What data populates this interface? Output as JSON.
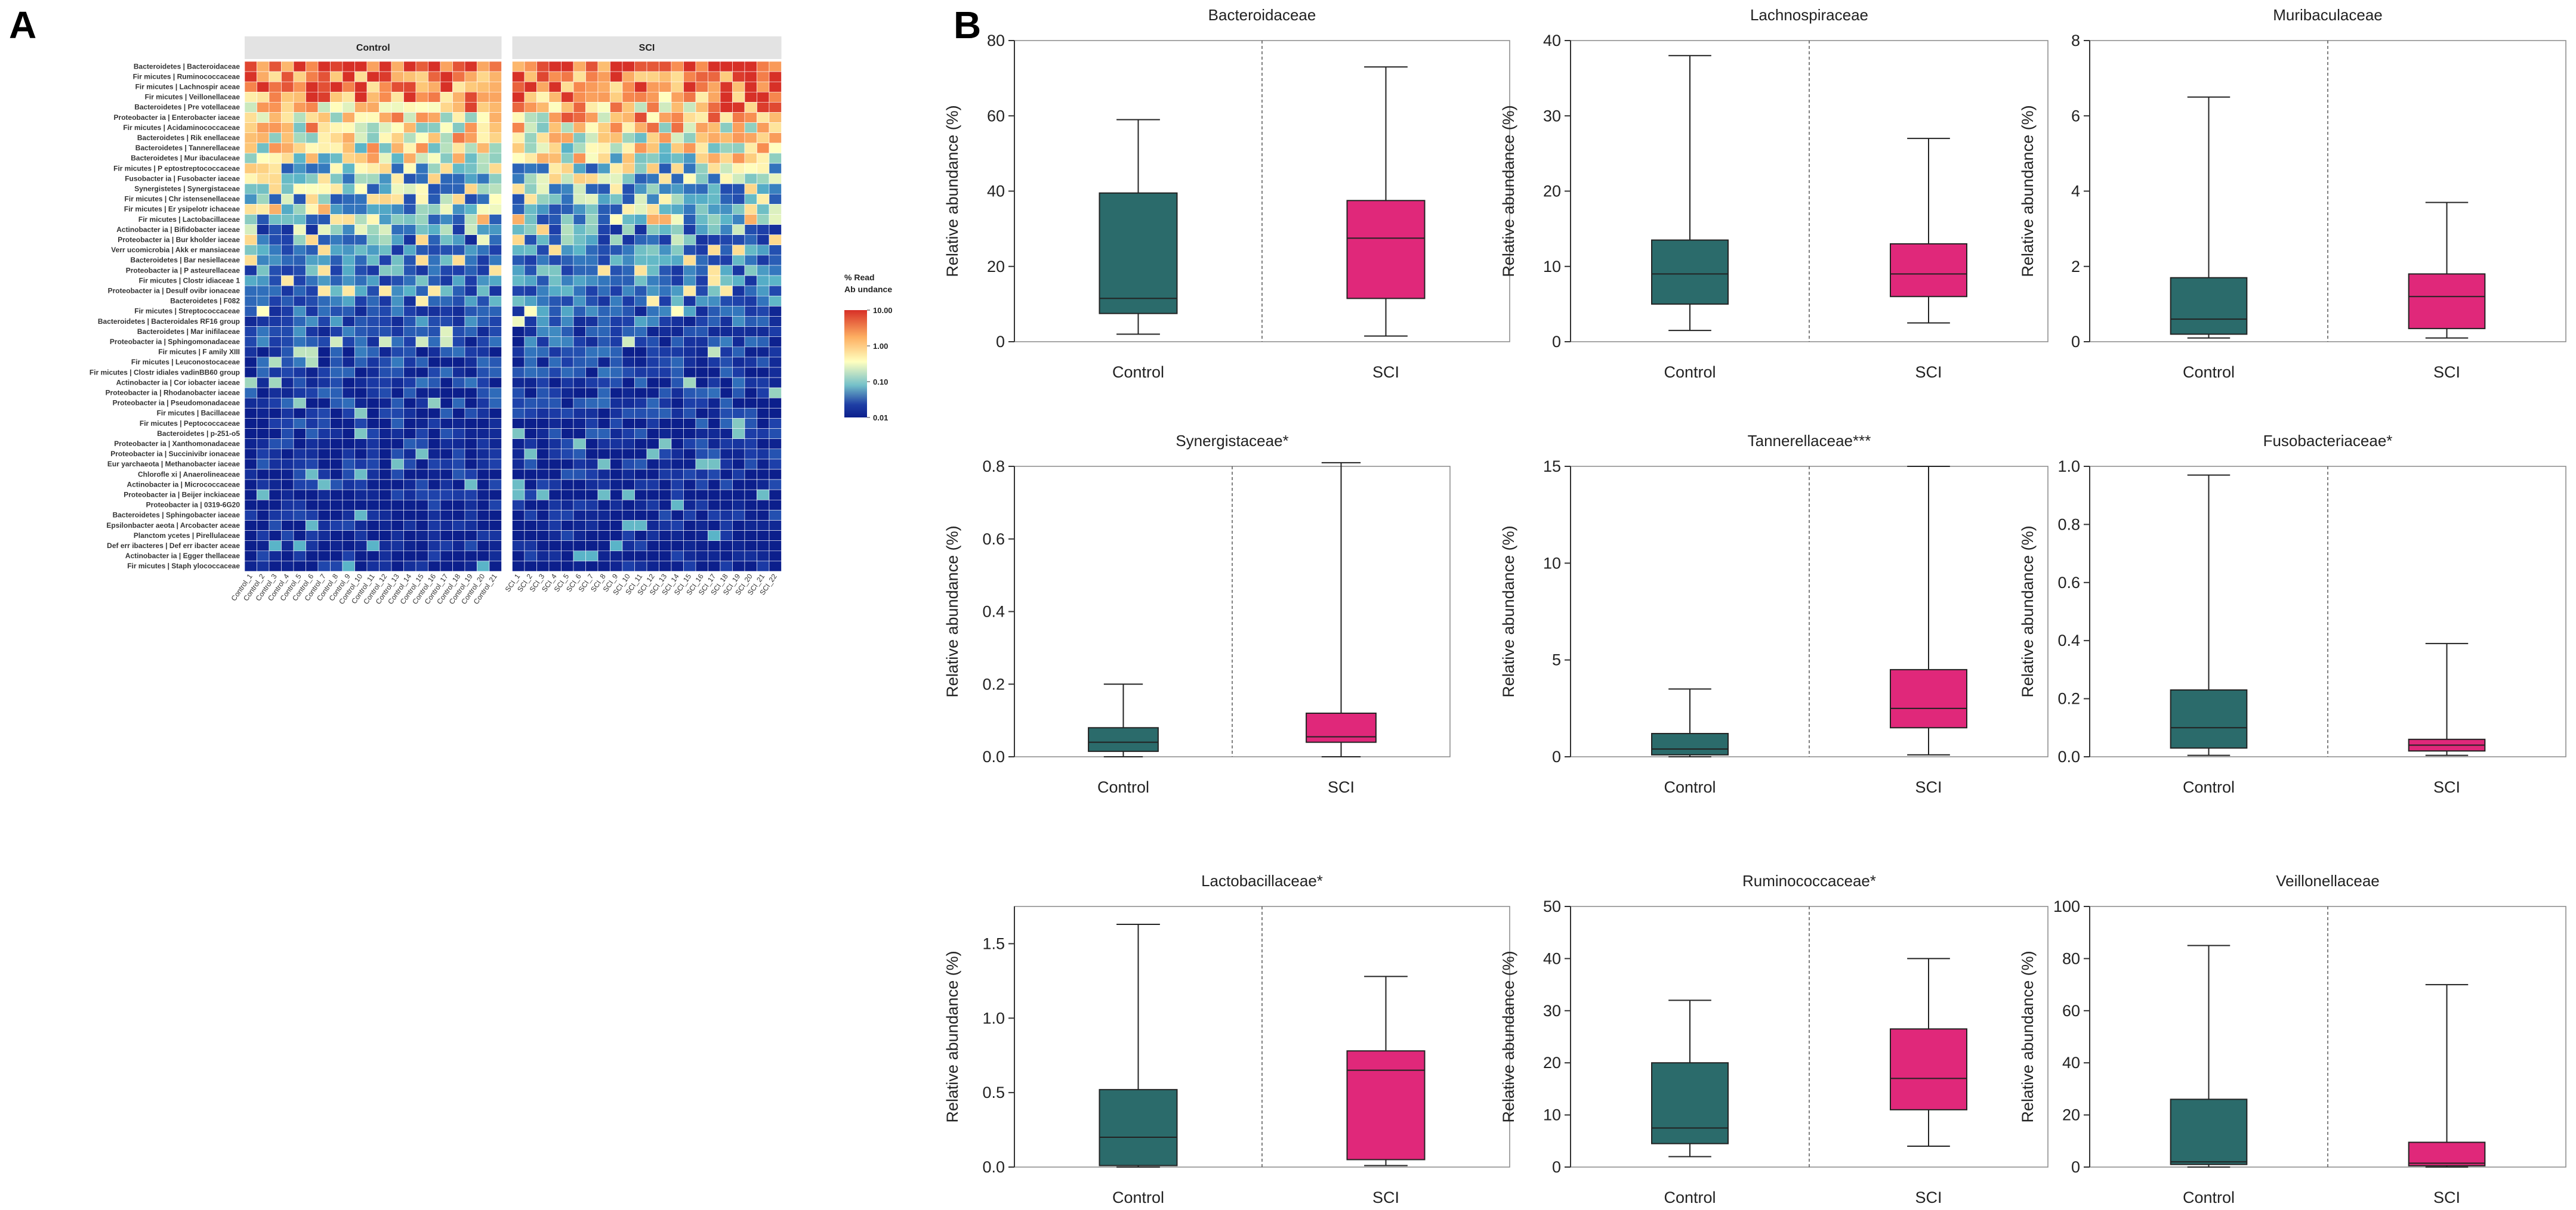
{
  "panel_labels": [
    "A",
    "B"
  ],
  "heatmap": {
    "groups": [
      "Control",
      "SCI"
    ],
    "legend_title_line1": "% Read",
    "legend_title_line2": "Ab undance",
    "legend_ticks": [
      "10.00",
      "1.00",
      "0.10",
      "0.01"
    ],
    "colors": {
      "high": "#d73027",
      "mid_high": "#fdae61",
      "mid": "#ffffbf",
      "mid_low": "#74c0c9",
      "low": "#1f3fa5",
      "floor": "#0c1f8c",
      "header_bg": "#e3e3e3"
    },
    "taxa": [
      "Bacteroidetes | Bacteroidaceae",
      "Fir micutes | Ruminococcaceae",
      "Fir micutes | Lachnospir aceae",
      "Fir micutes | Veillonellaceae",
      "Bacteroidetes | Pre votellaceae",
      "Proteobacter ia | Enterobacter iaceae",
      "Fir micutes | Acidaminococcaceae",
      "Bacteroidetes | Rik enellaceae",
      "Bacteroidetes | Tannerellaceae",
      "Bacteroidetes | Mur ibaculaceae",
      "Fir micutes | P eptostreptococcaceae",
      "Fusobacter ia | Fusobacter iaceae",
      "Synergistetes | Synergistaceae",
      "Fir micutes | Chr istensenellaceae",
      "Fir micutes | Er ysipelotr ichaceae",
      "Fir micutes | Lactobacillaceae",
      "Actinobacter ia | Bifidobacter iaceae",
      "Proteobacter ia | Bur kholder iaceae",
      "Verr ucomicrobia | Akk er mansiaceae",
      "Bacteroidetes | Bar nesiellaceae",
      "Proteobacter ia | P asteurellaceae",
      "Fir micutes | Clostr idiaceae 1",
      "Proteobacter ia | Desulf ovibr ionaceae",
      "Bacteroidetes | F082",
      "Fir micutes | Streptococcaceae",
      "Bacteroidetes | Bacteroidales RF16 group",
      "Bacteroidetes | Mar inifilaceae",
      "Proteobacter ia | Sphingomonadaceae",
      "Fir micutes | F amily XIII",
      "Fir micutes | Leuconostocaceae",
      "Fir micutes | Clostr idiales vadinBB60 group",
      "Actinobacter ia | Cor iobacter iaceae",
      "Proteobacter ia | Rhodanobacter iaceae",
      "Proteobacter ia | Pseudomonadaceae",
      "Fir micutes | Bacillaceae",
      "Fir micutes | Peptococcaceae",
      "Bacteroidetes | p-251-o5",
      "Proteobacter ia | Xanthomonadaceae",
      "Proteobacter ia | Succinivibr ionaceae",
      "Eur yarchaeota | Methanobacter iaceae",
      "Chlorofle xi | Anaerolineaceae",
      "Actinobacter ia | Micrococcaceae",
      "Proteobacter ia | Beijer inckiaceae",
      "Proteobacter ia | 0319-6G20",
      "Bacteroidetes | Sphingobacter iaceae",
      "Epsilonbacter aeota | Arcobacter aceae",
      "Planctom ycetes | Pirellulaceae",
      "Def err ibacteres | Def err ibacter aceae",
      "Actinobacter ia | Egger thellaceae",
      "Fir micutes | Staph ylococcaceae"
    ],
    "control_samples": [
      "Control_1",
      "Control_2",
      "Control_3",
      "Control_4",
      "Control_5",
      "Control_6",
      "Control_7",
      "Control_8",
      "Control_9",
      "Control_10",
      "Control_11",
      "Control_12",
      "Control_13",
      "Control_14",
      "Control_15",
      "Control_16",
      "Control_17",
      "Control_18",
      "Control_19",
      "Control_20",
      "Control_21"
    ],
    "sci_samples": [
      "SCI_1",
      "SCI_2",
      "SCI_3",
      "SCI_4",
      "SCI_5",
      "SCI_6",
      "SCI_7",
      "SCI_8",
      "SCI_9",
      "SCI_10",
      "SCI_11",
      "SCI_12",
      "SCI_13",
      "SCI_14",
      "SCI_15",
      "SCI_16",
      "SCI_17",
      "SCI_18",
      "SCI_19",
      "SCI_20",
      "SCI_21",
      "SCI_22"
    ],
    "row_mean_log10_abundance": [
      1.4,
      1.15,
      1.05,
      0.9,
      0.7,
      0.5,
      0.3,
      0.25,
      0.15,
      0.05,
      -0.4,
      -0.45,
      -0.5,
      -0.5,
      -0.6,
      -0.6,
      -0.9,
      -0.95,
      -1.0,
      -1.0,
      -1.05,
      -1.1,
      -1.1,
      -1.15,
      -1.3,
      -1.35,
      -1.4,
      -1.45,
      -1.5,
      -1.55,
      -1.6,
      -1.6,
      -1.65,
      -1.7,
      -1.75,
      -1.75,
      -1.8,
      -1.8,
      -1.85,
      -1.85,
      -1.9,
      -1.9,
      -1.9,
      -1.95,
      -1.95,
      -1.95,
      -2.0,
      -2.0,
      -2.0,
      -2.0
    ]
  },
  "chart_data": [
    {
      "type": "box",
      "title": "Bacteroidaceae",
      "ylabel": "Relative abundance (%)",
      "ylim": [
        0,
        80
      ],
      "yticks": [
        0,
        20,
        40,
        60,
        80
      ],
      "tick_labels": [
        "0",
        "20",
        "40",
        "60",
        "80"
      ],
      "groups": [
        "Control",
        "SCI"
      ],
      "boxes": [
        {
          "group": "Control",
          "min": 2,
          "q1": 7.5,
          "median": 11.5,
          "q3": 39.5,
          "max": 59
        },
        {
          "group": "SCI",
          "min": 1.5,
          "q1": 11.5,
          "median": 27.5,
          "q3": 37.5,
          "max": 73
        }
      ]
    },
    {
      "type": "box",
      "title": "Lachnospiraceae",
      "ylabel": "Relative abundance (%)",
      "ylim": [
        0,
        40
      ],
      "yticks": [
        0,
        10,
        20,
        30,
        40
      ],
      "tick_labels": [
        "0",
        "10",
        "20",
        "30",
        "40"
      ],
      "groups": [
        "Control",
        "SCI"
      ],
      "boxes": [
        {
          "group": "Control",
          "min": 1.5,
          "q1": 5,
          "median": 9,
          "q3": 13.5,
          "max": 38
        },
        {
          "group": "SCI",
          "min": 2.5,
          "q1": 6,
          "median": 9,
          "q3": 13,
          "max": 27
        }
      ]
    },
    {
      "type": "box",
      "title": "Muribaculaceae",
      "ylabel": "Relative abundance (%)",
      "ylim": [
        0,
        8
      ],
      "yticks": [
        0,
        2,
        4,
        6,
        8
      ],
      "tick_labels": [
        "0",
        "2",
        "4",
        "6",
        "8"
      ],
      "groups": [
        "Control",
        "SCI"
      ],
      "boxes": [
        {
          "group": "Control",
          "min": 0.1,
          "q1": 0.2,
          "median": 0.6,
          "q3": 1.7,
          "max": 6.5
        },
        {
          "group": "SCI",
          "min": 0.1,
          "q1": 0.35,
          "median": 1.2,
          "q3": 1.8,
          "max": 3.7
        }
      ]
    },
    {
      "type": "box",
      "title": "Synergistaceae*",
      "ylabel": "Relative abundance (%)",
      "ylim": [
        0,
        0.8
      ],
      "yticks": [
        0,
        0.2,
        0.4,
        0.6,
        0.8
      ],
      "tick_labels": [
        "0.0",
        "0.2",
        "0.4",
        "0.6",
        "0.8"
      ],
      "groups": [
        "Control",
        "SCI"
      ],
      "boxes": [
        {
          "group": "Control",
          "min": 0,
          "q1": 0.015,
          "median": 0.04,
          "q3": 0.08,
          "max": 0.2
        },
        {
          "group": "SCI",
          "min": 0,
          "q1": 0.04,
          "median": 0.055,
          "q3": 0.12,
          "max": 0.81
        }
      ]
    },
    {
      "type": "box",
      "title": "Tannerellaceae***",
      "ylabel": "Relative abundance (%)",
      "ylim": [
        0,
        15
      ],
      "yticks": [
        0,
        5,
        10,
        15
      ],
      "tick_labels": [
        "0",
        "5",
        "10",
        "15"
      ],
      "groups": [
        "Control",
        "SCI"
      ],
      "boxes": [
        {
          "group": "Control",
          "min": 0,
          "q1": 0.1,
          "median": 0.4,
          "q3": 1.2,
          "max": 3.5
        },
        {
          "group": "SCI",
          "min": 0.1,
          "q1": 1.5,
          "median": 2.5,
          "q3": 4.5,
          "max": 15
        }
      ]
    },
    {
      "type": "box",
      "title": "Fusobacteriaceae*",
      "ylabel": "Relative abundance (%)",
      "ylim": [
        0,
        1.0
      ],
      "yticks": [
        0,
        0.2,
        0.4,
        0.6,
        0.8,
        1.0
      ],
      "tick_labels": [
        "0.0",
        "0.2",
        "0.4",
        "0.6",
        "0.8",
        "1.0"
      ],
      "groups": [
        "Control",
        "SCI"
      ],
      "boxes": [
        {
          "group": "Control",
          "min": 0.005,
          "q1": 0.03,
          "median": 0.1,
          "q3": 0.23,
          "max": 0.97
        },
        {
          "group": "SCI",
          "min": 0.005,
          "q1": 0.02,
          "median": 0.04,
          "q3": 0.06,
          "max": 0.39
        }
      ]
    },
    {
      "type": "box",
      "title": "Lactobacillaceae*",
      "ylabel": "Relative abundance (%)",
      "ylim": [
        0,
        1.75
      ],
      "yticks": [
        0,
        0.5,
        1.0,
        1.5
      ],
      "tick_labels": [
        "0.0",
        "0.5",
        "1.0",
        "1.5"
      ],
      "groups": [
        "Control",
        "SCI"
      ],
      "boxes": [
        {
          "group": "Control",
          "min": 0,
          "q1": 0.01,
          "median": 0.2,
          "q3": 0.52,
          "max": 1.63
        },
        {
          "group": "SCI",
          "min": 0.01,
          "q1": 0.05,
          "median": 0.65,
          "q3": 0.78,
          "max": 1.28
        }
      ]
    },
    {
      "type": "box",
      "title": "Ruminococcaceae*",
      "ylabel": "Relative abundance (%)",
      "ylim": [
        0,
        50
      ],
      "yticks": [
        0,
        10,
        20,
        30,
        40,
        50
      ],
      "tick_labels": [
        "0",
        "10",
        "20",
        "30",
        "40",
        "50"
      ],
      "groups": [
        "Control",
        "SCI"
      ],
      "boxes": [
        {
          "group": "Control",
          "min": 2,
          "q1": 4.5,
          "median": 7.5,
          "q3": 20,
          "max": 32
        },
        {
          "group": "SCI",
          "min": 4,
          "q1": 11,
          "median": 17,
          "q3": 26.5,
          "max": 40
        }
      ]
    },
    {
      "type": "box",
      "title": "Veillonellaceae",
      "ylabel": "Relative abundance (%)",
      "ylim": [
        0,
        100
      ],
      "yticks": [
        0,
        20,
        40,
        60,
        80,
        100
      ],
      "tick_labels": [
        "0",
        "20",
        "40",
        "60",
        "80",
        "100"
      ],
      "groups": [
        "Control",
        "SCI"
      ],
      "boxes": [
        {
          "group": "Control",
          "min": 0,
          "q1": 1,
          "median": 2,
          "q3": 26,
          "max": 85
        },
        {
          "group": "SCI",
          "min": 0,
          "q1": 0.5,
          "median": 1.5,
          "q3": 9.5,
          "max": 70
        }
      ]
    }
  ],
  "box_colors": {
    "Control": "#2b6b6b",
    "SCI": "#e0287a",
    "axis": "#333333",
    "divider": "#555555"
  }
}
